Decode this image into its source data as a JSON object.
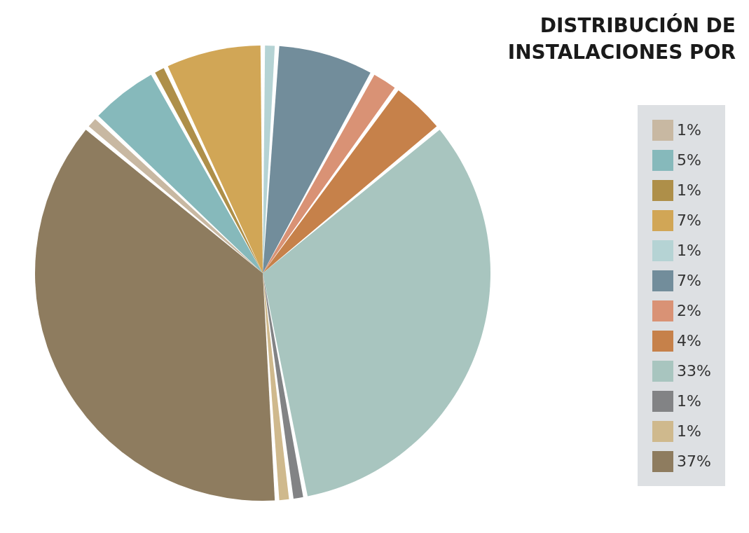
{
  "chart_data": {
    "type": "pie",
    "title": "DISTRIBUCIÓN DE INSTALACIONES POR",
    "categories": [
      "1%",
      "5%",
      "1%",
      "7%",
      "1%",
      "7%",
      "2%",
      "4%",
      "33%",
      "1%",
      "1%",
      "37%"
    ],
    "values": [
      1,
      5,
      1,
      7,
      1,
      7,
      2,
      4,
      33,
      1,
      1,
      37
    ],
    "colors": [
      "#c8b8a2",
      "#86b9bb",
      "#ae8f49",
      "#d1a656",
      "#b5d3d4",
      "#728d9b",
      "#d99275",
      "#c6814a",
      "#a8c5bf",
      "#828385",
      "#cfb98d",
      "#8e7c5f"
    ],
    "legend": "right"
  }
}
